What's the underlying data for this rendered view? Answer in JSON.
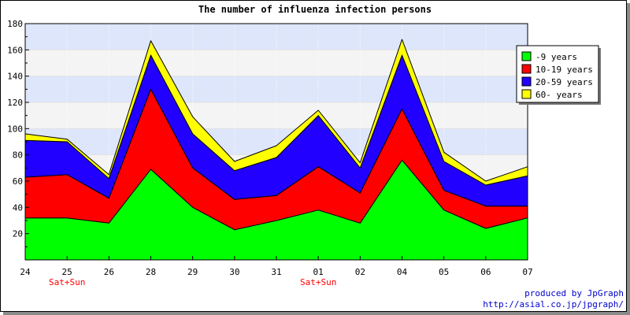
{
  "chart_data": {
    "type": "area",
    "stacked": true,
    "title": "The number of influenza infection persons",
    "categories": [
      "24",
      "25",
      "26",
      "28",
      "29",
      "30",
      "31",
      "01",
      "02",
      "04",
      "05",
      "06",
      "07"
    ],
    "category_notes": [
      "",
      "Sat+Sun",
      "",
      "",
      "",
      "",
      "",
      "Sat+Sun",
      "",
      "",
      "",
      "",
      ""
    ],
    "ylim": [
      0,
      180
    ],
    "yticks": [
      20,
      40,
      60,
      80,
      100,
      120,
      140,
      160,
      180
    ],
    "xlabel": "",
    "ylabel": "",
    "grid": true,
    "legend_position": "top-right",
    "series": [
      {
        "name": "-9 years",
        "color": "#00ff00",
        "values": [
          32,
          32,
          28,
          69,
          40,
          23,
          30,
          38,
          28,
          76,
          38,
          24,
          32
        ]
      },
      {
        "name": "10-19 years",
        "color": "#ff0000",
        "values": [
          31,
          33,
          19,
          61,
          30,
          23,
          19,
          33,
          23,
          39,
          15,
          17,
          9
        ]
      },
      {
        "name": "20-59 years",
        "color": "#2200ff",
        "values": [
          28,
          25,
          15,
          26,
          26,
          22,
          29,
          39,
          19,
          41,
          22,
          16,
          23
        ]
      },
      {
        "name": "60- years",
        "color": "#ffff00",
        "values": [
          5,
          2,
          3,
          11,
          13,
          7,
          9,
          4,
          4,
          12,
          7,
          3,
          7
        ]
      }
    ]
  },
  "footer": {
    "credit": "produced by JpGraph",
    "url": "http://asial.co.jp/jpgraph/"
  }
}
